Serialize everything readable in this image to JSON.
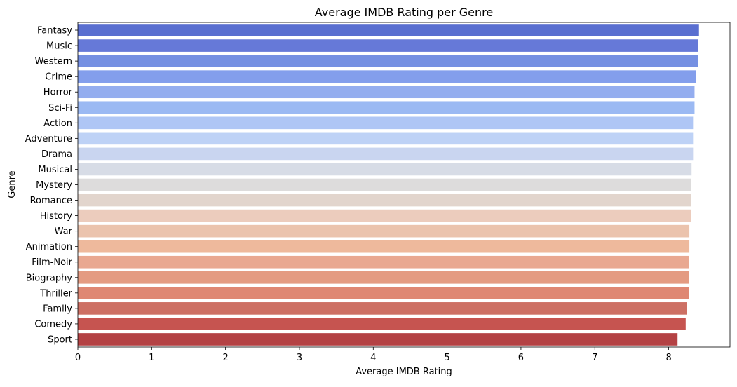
{
  "chart_data": {
    "type": "bar",
    "orientation": "horizontal",
    "title": "Average IMDB Rating per Genre",
    "xlabel": "Average IMDB Rating",
    "ylabel": "Genre",
    "xlim": [
      0,
      8.83
    ],
    "xticks": [
      "0",
      "1",
      "2",
      "3",
      "4",
      "5",
      "6",
      "7",
      "8"
    ],
    "grid": false,
    "palette": "coolwarm",
    "categories": [
      "Fantasy",
      "Music",
      "Western",
      "Crime",
      "Horror",
      "Sci-Fi",
      "Action",
      "Adventure",
      "Drama",
      "Musical",
      "Mystery",
      "Romance",
      "History",
      "War",
      "Animation",
      "Film-Noir",
      "Biography",
      "Thriller",
      "Family",
      "Comedy",
      "Sport"
    ],
    "values": [
      8.41,
      8.4,
      8.4,
      8.37,
      8.35,
      8.35,
      8.33,
      8.33,
      8.33,
      8.31,
      8.3,
      8.3,
      8.3,
      8.28,
      8.28,
      8.27,
      8.27,
      8.27,
      8.25,
      8.23,
      8.12
    ],
    "colors": [
      "#5a6fd0",
      "#6679d8",
      "#7590e2",
      "#839eec",
      "#94adef",
      "#9bb9f3",
      "#afc6f5",
      "#bed2f6",
      "#c9d5f0",
      "#d7dce6",
      "#dddcdc",
      "#e2d5cd",
      "#ecccbd",
      "#ebc3ad",
      "#eeb99c",
      "#e9a891",
      "#e49b82",
      "#df8773",
      "#cd7064",
      "#c65450",
      "#b44244"
    ]
  }
}
